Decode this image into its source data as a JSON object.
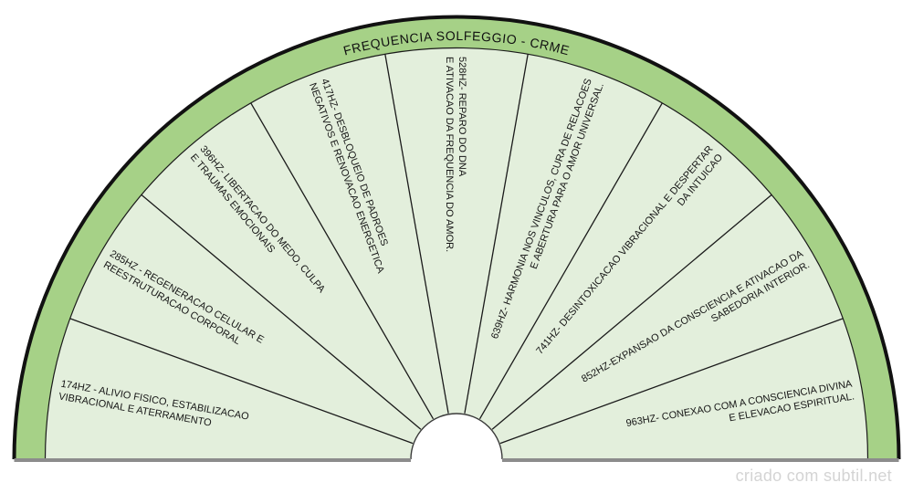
{
  "title": "FREQUENCIA SOLFEGGIO - CRME",
  "footer": {
    "credit": "criado com subtil.net"
  },
  "colors": {
    "band_green": "#a6d187",
    "sector_fill": "#e3efdc",
    "outline_black": "#111111",
    "divider_black": "#1a1a1a",
    "baseline_gray": "#8c8c8c",
    "notch_fill": "#ffffff",
    "text_black": "#151515",
    "credit_gray": "#d4d4d4"
  },
  "chart": {
    "type": "semicircular-pendulum-chart",
    "sector_angle_deg": 20,
    "sectors": [
      {
        "frequency": "174HZ",
        "label": "174HZ - ALIVIO FISICO, ESTABILIZACAO VIBRACIONAL E ATERRAMENTO",
        "lines": [
          "174HZ - ALIVIO FISICO, ESTABILIZACAO",
          "VIBRACIONAL E ATERRAMENTO"
        ]
      },
      {
        "frequency": "285HZ",
        "label": "285HZ - REGENERACAO CELULAR E REESTRUTURACAO CORPORAL",
        "lines": [
          "285HZ - REGENERACAO CELULAR E",
          "REESTRUTURACAO CORPORAL"
        ]
      },
      {
        "frequency": "396HZ",
        "label": "396HZ- LIBERTACAO DO MEDO, CULPA E TRAUMAS EMOCIONAIS",
        "lines": [
          "396HZ- LIBERTACAO DO MEDO, CULPA",
          "E TRAUMAS EMOCIONAIS"
        ]
      },
      {
        "frequency": "417HZ",
        "label": "417HZ- DESBLOQUEIO DE PADROES NEGATIVOS E RENOVACAO ENERGETICA",
        "lines": [
          "417HZ- DESBLOQUEIO DE PADROES",
          "NEGATIVOS E RENOVACAO ENERGETICA"
        ]
      },
      {
        "frequency": "528HZ",
        "label": "528HZ- REPARO DO DNA E ATIVACAO DA FREQUENCIA DO AMOR.",
        "lines": [
          "528HZ- REPARO DO DNA",
          "E ATIVACAO DA FREQUENCIA DO AMOR."
        ]
      },
      {
        "frequency": "639HZ",
        "label": "639HZ- HARMONIA NOS VINCULOS, CURA DE RELACOES E ABERTURA PARA O AMOR UNIVERSAL.",
        "lines": [
          "639HZ- HARMONIA NOS VINCULOS, CURA DE RELACOES",
          "E ABERTURA PARA O AMOR UNIVERSAL."
        ]
      },
      {
        "frequency": "741HZ",
        "label": "741HZ- DESINTOXICACAO VIBRACIONAL E DESPERTAR DA INTUICAO",
        "lines": [
          "741HZ- DESINTOXICACAO VIBRACIONAL E DESPERTAR",
          "DA INTUICAO"
        ]
      },
      {
        "frequency": "852HZ",
        "label": "852HZ-EXPANSAO DA CONSCIENCIA E ATIVACAO DA SABEDORIA INTERIOR.",
        "lines": [
          "852HZ-EXPANSAO DA CONSCIENCIA E ATIVACAO DA",
          "SABEDORIA INTERIOR."
        ]
      },
      {
        "frequency": "963HZ",
        "label": "963HZ- CONEXAO COM A CONSCIENCIA DIVINA E ELEVACAO ESPIRITUAL.",
        "lines": [
          "963HZ- CONEXAO COM A CONSCIENCIA DIVINA",
          "E ELEVACAO ESPIRITUAL."
        ]
      }
    ]
  }
}
